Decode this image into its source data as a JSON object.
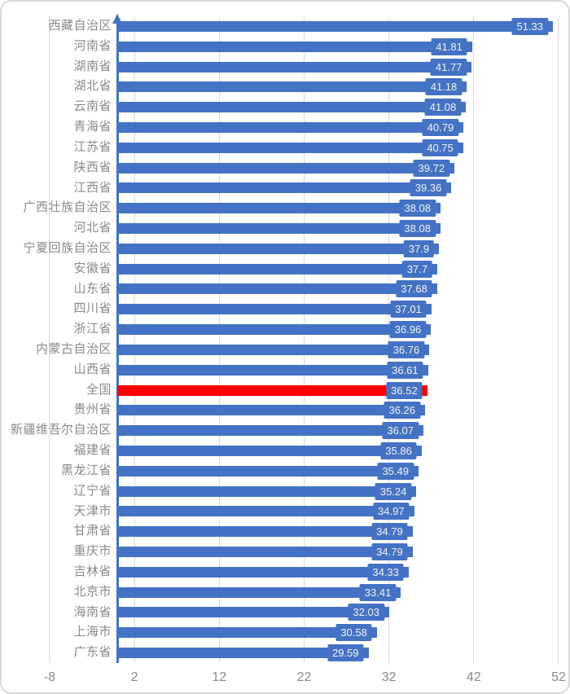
{
  "chart_data": {
    "type": "bar",
    "orientation": "horizontal",
    "title": "",
    "xlabel": "",
    "ylabel": "",
    "legend": "none",
    "grid": true,
    "xlim": [
      -8,
      52
    ],
    "x_ticks": [
      -8,
      2,
      12,
      22,
      32,
      42,
      52
    ],
    "bar_start_value": 0,
    "value_label_position": "inside-end",
    "axis_arrow": "top-of-category-axis",
    "categories": [
      "西藏自治区",
      "河南省",
      "湖南省",
      "湖北省",
      "云南省",
      "青海省",
      "江苏省",
      "陕西省",
      "江西省",
      "广西壮族自治区",
      "河北省",
      "宁夏回族自治区",
      "安徽省",
      "山东省",
      "四川省",
      "浙江省",
      "内蒙古自治区",
      "山西省",
      "全国",
      "贵州省",
      "新疆维吾尔自治区",
      "福建省",
      "黑龙江省",
      "辽宁省",
      "天津市",
      "甘肃省",
      "重庆市",
      "吉林省",
      "北京市",
      "海南省",
      "上海市",
      "广东省"
    ],
    "values": [
      51.33,
      41.81,
      41.77,
      41.18,
      41.08,
      40.79,
      40.75,
      39.72,
      39.36,
      38.08,
      38.08,
      37.9,
      37.7,
      37.68,
      37.01,
      36.96,
      36.76,
      36.61,
      36.52,
      36.26,
      36.07,
      35.86,
      35.49,
      35.24,
      34.97,
      34.79,
      34.79,
      34.33,
      33.41,
      32.03,
      30.58,
      29.59
    ],
    "value_display_texts": [
      "51.33",
      "41.81",
      "41.77",
      "41.18",
      "41.08",
      "40.79",
      "40.75",
      "39.72",
      "39.36",
      "38.08",
      "38.08",
      "37.9",
      "37.7",
      "37.68",
      "37.01",
      "36.96",
      "36.76",
      "36.61",
      "36.52",
      "36.26",
      "36.07",
      "35.86",
      "35.49",
      "35.24",
      "34.97",
      "34.79",
      "34.79",
      "34.33",
      "33.41",
      "32.03",
      "30.58",
      "29.59"
    ],
    "highlight_category": "全国",
    "highlight_index": 18,
    "colors": {
      "bar": "#4472c4",
      "highlight_bar": "#fe0000",
      "value_label_bg": "#4472c4",
      "value_label_text": "#f5f5f5",
      "gridline": "#d9d9d9",
      "axis_line": "#4472c4",
      "category_text": "#8a8a8a",
      "tick_text": "#8a8a8a",
      "border": "#d9d9d9",
      "background": "#ffffff"
    }
  }
}
